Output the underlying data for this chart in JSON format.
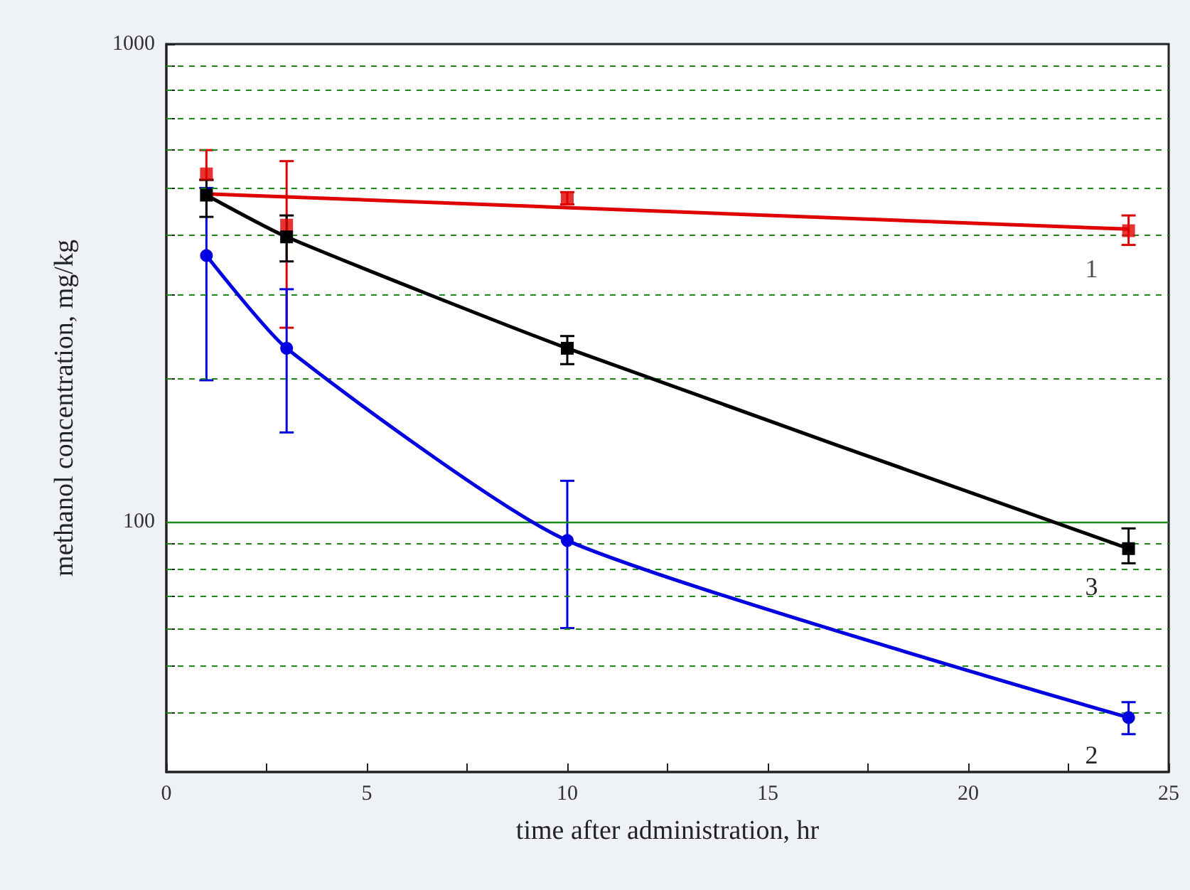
{
  "chart_data": {
    "type": "line",
    "xlabel": "time after administration, hr",
    "ylabel": "methanol concentration, mg/kg",
    "log": "y",
    "grid": "y",
    "legend": false,
    "xlim": [
      0,
      25
    ],
    "xticks": [
      0,
      {
        "value": 2.5,
        "label": null
      },
      5,
      {
        "value": 7.5,
        "label": null
      },
      10,
      {
        "value": 12.5,
        "label": null
      },
      15,
      {
        "value": 17.5,
        "label": null
      },
      20,
      {
        "value": 22.5,
        "label": null
      },
      25
    ],
    "ylim": [
      30,
      1000
    ],
    "yticks": [
      {
        "value": 40,
        "label": null
      },
      {
        "value": 50,
        "label": null
      },
      {
        "value": 60,
        "label": null
      },
      {
        "value": 70,
        "label": null
      },
      {
        "value": 80,
        "label": null
      },
      {
        "value": 90,
        "label": null
      },
      100,
      {
        "value": 200,
        "label": null
      },
      {
        "value": 300,
        "label": null
      },
      {
        "value": 400,
        "label": null
      },
      {
        "value": 500,
        "label": null
      },
      {
        "value": 600,
        "label": null
      },
      {
        "value": 700,
        "label": null
      },
      {
        "value": 800,
        "label": null
      },
      {
        "value": 900,
        "label": null
      },
      1000
    ],
    "ref_lines": [
      {
        "axis": "y",
        "value": 100,
        "color": "#1a8a1a",
        "line_style": "solid"
      }
    ],
    "series": [
      {
        "type": "scatter",
        "name": "1",
        "color": "#e00000",
        "marker": "square",
        "x": [
          1,
          3,
          10,
          24
        ],
        "values": [
          535,
          418,
          476,
          407
        ],
        "errors": [
          [
            520,
            600
          ],
          [
            255,
            569
          ],
          [
            462,
            490
          ],
          [
            380,
            438
          ]
        ]
      },
      {
        "color": "#e00000",
        "marker": "none",
        "x": [
          1,
          24
        ],
        "values": [
          486,
          410
        ]
      },
      {
        "name": "2",
        "color": "#0000e0",
        "marker": "circle",
        "x": [
          1,
          3,
          10,
          24
        ],
        "values": [
          361,
          231,
          91.5,
          39
        ],
        "errors": [
          [
            198,
            500
          ],
          [
            154,
            307
          ],
          [
            60,
            122
          ],
          [
            36,
            42
          ]
        ]
      },
      {
        "name": "3",
        "color": "#000000",
        "marker": "square",
        "x": [
          1,
          3,
          10,
          24
        ],
        "values": [
          483,
          395,
          231,
          88
        ],
        "errors": [
          [
            435,
            520
          ],
          [
            351,
            438
          ],
          [
            214,
            245
          ],
          [
            82,
            97
          ]
        ]
      }
    ]
  }
}
